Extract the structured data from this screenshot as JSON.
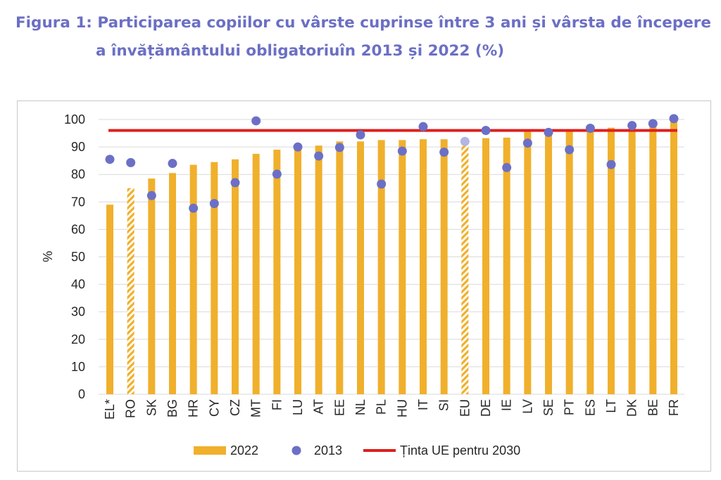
{
  "title": {
    "line1": "Figura 1: Participarea copiilor cu vârste cuprinse între 3 ani și vârsta de începere",
    "line2": "a învățământului obligatoriuîn 2013 și 2022 (%)"
  },
  "colors": {
    "bar": "#f0b02c",
    "dot": "#6b70c6",
    "dot_estimate": "#b3b6e2",
    "target": "#e01e1e",
    "grid": "#d9d9d9",
    "title": "#6b6fc4"
  },
  "chart_data": {
    "type": "bar",
    "title": "",
    "xlabel": "",
    "ylabel": "%",
    "ylim": [
      0,
      100
    ],
    "yticks": [
      0,
      10,
      20,
      30,
      40,
      50,
      60,
      70,
      80,
      90,
      100
    ],
    "grid": true,
    "legend_position": "bottom",
    "categories": [
      "EL*",
      "RO",
      "SK",
      "BG",
      "HR",
      "CY",
      "CZ",
      "MT",
      "FI",
      "LU",
      "AT",
      "EE",
      "NL",
      "PL",
      "HU",
      "IT",
      "SI",
      "EU",
      "DE",
      "IE",
      "LV",
      "SE",
      "PT",
      "ES",
      "LT",
      "DK",
      "BE",
      "FR"
    ],
    "hatched_categories": [
      "RO",
      "EU"
    ],
    "series": [
      {
        "name": "2022",
        "kind": "bar",
        "values": [
          69,
          75,
          78.5,
          80.5,
          83.5,
          84.5,
          85.5,
          87.5,
          89,
          89.5,
          90.5,
          92,
          92,
          92.5,
          92.5,
          92.8,
          92.8,
          92.5,
          93.2,
          93.4,
          95.8,
          95.8,
          95.8,
          96.5,
          97,
          97.5,
          97.8,
          100
        ]
      },
      {
        "name": "2013",
        "kind": "scatter",
        "values": [
          85.5,
          84.3,
          72.3,
          84,
          67.7,
          69.4,
          77,
          99.5,
          80.1,
          90,
          86.7,
          89.8,
          94.4,
          76.5,
          88.5,
          97.4,
          88.1,
          92,
          96,
          82.5,
          91.4,
          95.3,
          89,
          96.8,
          83.6,
          97.8,
          98.5,
          100.3
        ]
      },
      {
        "name": "Ținta UE pentru 2030",
        "kind": "line",
        "value": 96
      }
    ]
  }
}
